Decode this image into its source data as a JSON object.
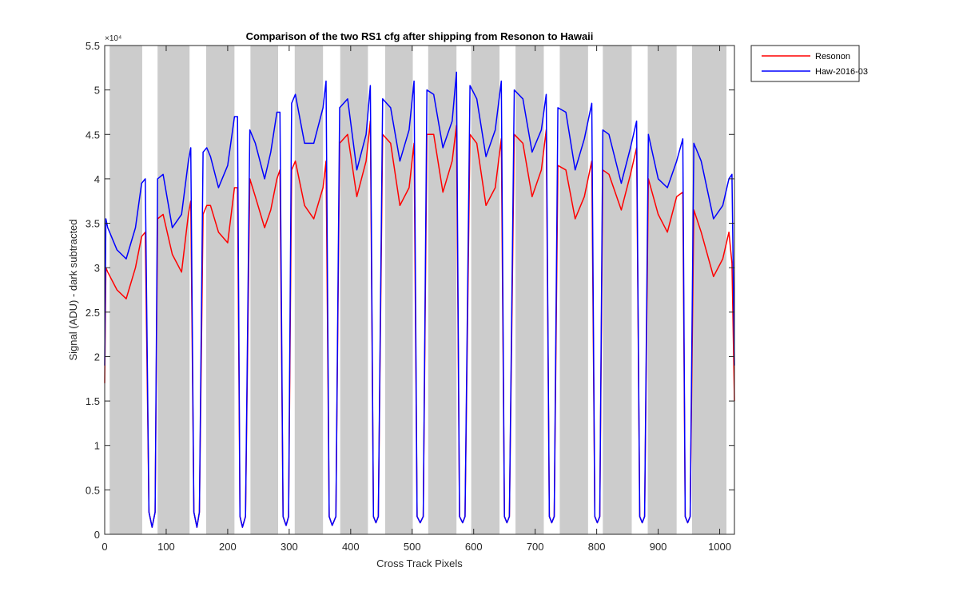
{
  "chart_data": {
    "type": "line",
    "title": "Comparison of the two RS1 cfg after shipping from Resonon to Hawaii",
    "xlabel": "Cross Track Pixels",
    "ylabel": "Signal (ADU) - dark subtracted",
    "y_exponent_label": "×10⁴",
    "xlim": [
      0,
      1024
    ],
    "ylim": [
      0,
      55000
    ],
    "x_ticks": [
      0,
      100,
      200,
      300,
      400,
      500,
      600,
      700,
      800,
      900,
      1000
    ],
    "x_tick_labels": [
      "0",
      "100",
      "200",
      "300",
      "400",
      "500",
      "600",
      "700",
      "800",
      "900",
      "1000"
    ],
    "y_ticks": [
      0,
      5000,
      10000,
      15000,
      20000,
      25000,
      30000,
      35000,
      40000,
      45000,
      50000,
      55000
    ],
    "y_tick_labels": [
      "0",
      "0.5",
      "1",
      "1.5",
      "2",
      "2.5",
      "3",
      "3.5",
      "4",
      "4.5",
      "5",
      "5.5"
    ],
    "grid": false,
    "legend_position": "outside-top-right",
    "shaded_regions": {
      "color": "#cccccc",
      "x_ranges": [
        [
          8,
          61
        ],
        [
          86,
          138
        ],
        [
          165,
          211
        ],
        [
          237,
          282
        ],
        [
          309,
          355
        ],
        [
          383,
          428
        ],
        [
          456,
          501
        ],
        [
          526,
          572
        ],
        [
          596,
          642
        ],
        [
          668,
          714
        ],
        [
          740,
          786
        ],
        [
          810,
          857
        ],
        [
          883,
          930
        ],
        [
          955,
          1011
        ]
      ]
    },
    "series": [
      {
        "name": "Resonon",
        "color": "#ff0000",
        "x": [
          0,
          2,
          5,
          20,
          35,
          50,
          60,
          66,
          72,
          77,
          82,
          86,
          95,
          110,
          125,
          136,
          140,
          145,
          150,
          154,
          160,
          166,
          172,
          185,
          200,
          211,
          216,
          220,
          224,
          229,
          236,
          245,
          260,
          270,
          280,
          285,
          290,
          295,
          299,
          304,
          310,
          325,
          340,
          355,
          360,
          365,
          370,
          376,
          382,
          395,
          410,
          425,
          432,
          437,
          441,
          445,
          452,
          465,
          480,
          495,
          503,
          508,
          513,
          518,
          524,
          535,
          550,
          565,
          572,
          577,
          582,
          586,
          594,
          605,
          620,
          635,
          645,
          650,
          654,
          658,
          666,
          680,
          695,
          710,
          718,
          723,
          727,
          731,
          737,
          750,
          765,
          780,
          792,
          797,
          801,
          805,
          810,
          820,
          840,
          855,
          865,
          870,
          874,
          878,
          884,
          900,
          915,
          930,
          940,
          944,
          948,
          952,
          958,
          970,
          990,
          1005,
          1015,
          1020,
          1024
        ],
        "y": [
          17000,
          30000,
          29500,
          27500,
          26500,
          30000,
          33500,
          34000,
          2500,
          800,
          2500,
          35500,
          36000,
          31500,
          29500,
          36000,
          37500,
          2500,
          800,
          2500,
          36000,
          37000,
          37000,
          34000,
          32800,
          39000,
          39000,
          2000,
          800,
          2000,
          40000,
          38000,
          34500,
          36500,
          40000,
          41000,
          2000,
          1000,
          2000,
          41000,
          42000,
          37000,
          35500,
          39000,
          42000,
          2000,
          1000,
          2000,
          44000,
          45000,
          38000,
          42000,
          46500,
          2000,
          1300,
          2000,
          45000,
          44000,
          37000,
          39000,
          44000,
          2000,
          1300,
          2000,
          45000,
          45000,
          38500,
          42000,
          46000,
          2000,
          1300,
          2000,
          45000,
          44000,
          37000,
          39000,
          44500,
          2000,
          1300,
          2000,
          45000,
          44000,
          38000,
          41000,
          45500,
          2000,
          1300,
          2000,
          41500,
          41000,
          35500,
          38000,
          42000,
          2000,
          1300,
          2000,
          41000,
          40500,
          36500,
          40500,
          43500,
          2000,
          1300,
          2000,
          40000,
          36000,
          34000,
          38000,
          38500,
          2000,
          1300,
          2000,
          36500,
          34000,
          29000,
          31000,
          34000,
          30500,
          15000
        ]
      },
      {
        "name": "Haw-2016-03",
        "color": "#0000ff",
        "x": [
          0,
          2,
          5,
          20,
          35,
          50,
          60,
          66,
          72,
          77,
          82,
          86,
          95,
          110,
          125,
          136,
          140,
          145,
          150,
          154,
          160,
          166,
          172,
          185,
          200,
          211,
          216,
          220,
          224,
          229,
          236,
          245,
          260,
          270,
          280,
          285,
          290,
          295,
          299,
          304,
          310,
          325,
          340,
          355,
          360,
          365,
          370,
          376,
          382,
          395,
          410,
          425,
          432,
          437,
          441,
          445,
          452,
          465,
          480,
          495,
          503,
          508,
          513,
          518,
          524,
          535,
          550,
          565,
          572,
          577,
          582,
          586,
          594,
          605,
          620,
          635,
          645,
          650,
          654,
          658,
          666,
          680,
          695,
          710,
          718,
          723,
          727,
          731,
          737,
          750,
          765,
          780,
          792,
          797,
          801,
          805,
          810,
          820,
          840,
          855,
          865,
          870,
          874,
          878,
          884,
          900,
          915,
          930,
          940,
          944,
          948,
          952,
          958,
          970,
          990,
          1005,
          1015,
          1020,
          1024
        ],
        "y": [
          19000,
          35500,
          34500,
          32000,
          31000,
          34500,
          39500,
          40000,
          2500,
          800,
          2500,
          40000,
          40500,
          34500,
          36000,
          42000,
          43500,
          2500,
          800,
          2500,
          43000,
          43500,
          42500,
          39000,
          41500,
          47000,
          47000,
          2000,
          800,
          2000,
          45500,
          44000,
          40000,
          43000,
          47500,
          47500,
          2000,
          1000,
          2000,
          48500,
          49500,
          44000,
          44000,
          48000,
          51000,
          2000,
          1000,
          2000,
          48000,
          49000,
          41000,
          45000,
          50500,
          2000,
          1300,
          2000,
          49000,
          48000,
          42000,
          45500,
          51000,
          2000,
          1300,
          2000,
          50000,
          49500,
          43500,
          46500,
          52000,
          2000,
          1300,
          2000,
          50500,
          49000,
          42500,
          45500,
          51000,
          2000,
          1300,
          2000,
          50000,
          49000,
          43000,
          45500,
          49500,
          2000,
          1300,
          2000,
          48000,
          47500,
          41000,
          44500,
          48500,
          2000,
          1300,
          2000,
          45500,
          45000,
          39500,
          43500,
          46500,
          2000,
          1300,
          2000,
          45000,
          40000,
          39000,
          42000,
          44500,
          2000,
          1300,
          2000,
          44000,
          42000,
          35500,
          37000,
          40000,
          40500,
          19000
        ]
      }
    ]
  }
}
